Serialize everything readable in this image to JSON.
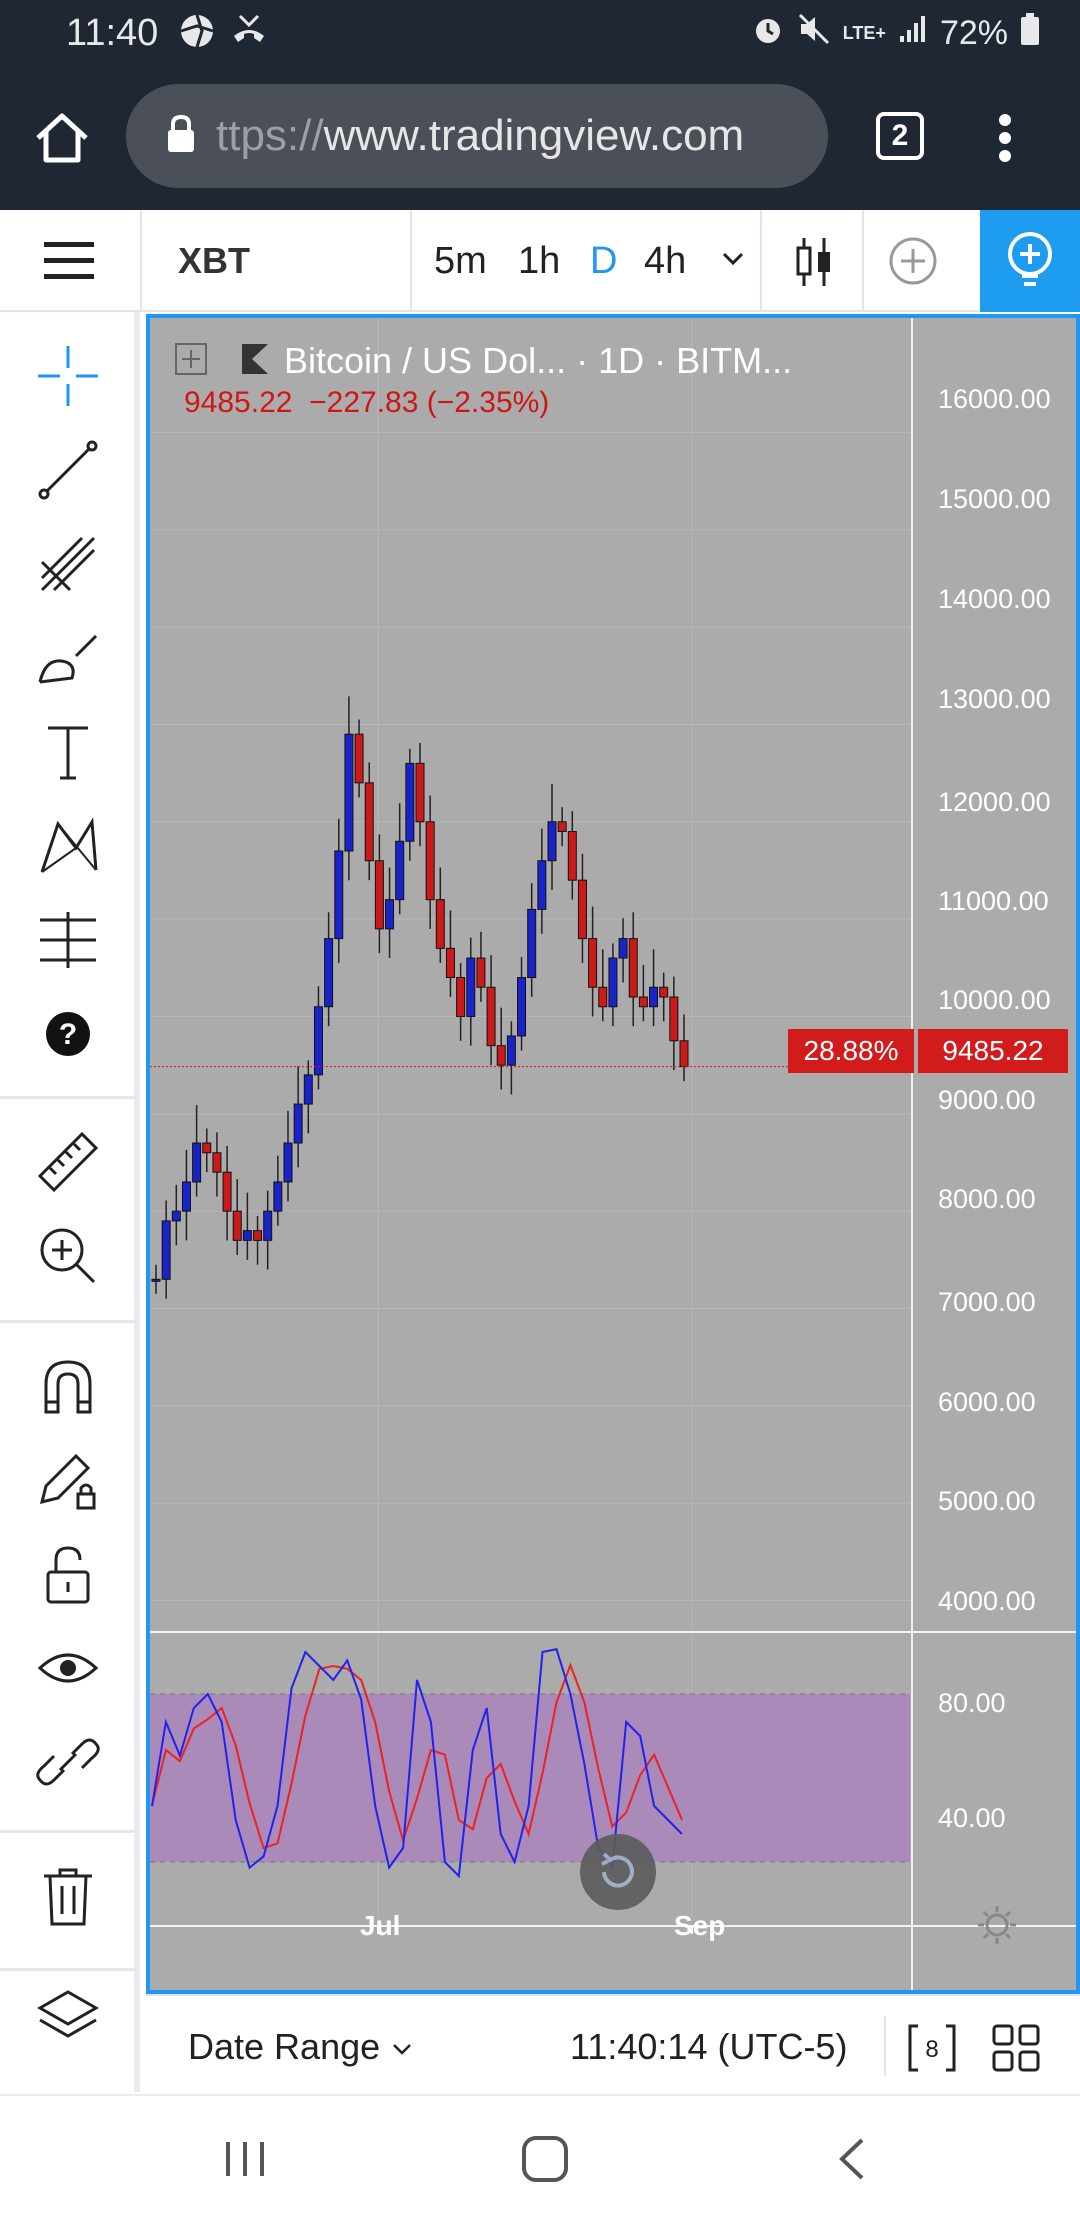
{
  "status_bar": {
    "time": "11:40",
    "network": "LTE+",
    "battery": "72%",
    "icons_left": [
      "aperture-icon",
      "missed-call-icon"
    ],
    "icons_right": [
      "alarm-icon",
      "mute-icon",
      "lte-icon",
      "signal-icon",
      "battery-icon"
    ]
  },
  "browser": {
    "url_prefix": "ttps://",
    "url_host": "www.tradingview.com",
    "tab_count": "2"
  },
  "tv_header": {
    "symbol": "XBT",
    "intervals": [
      "5m",
      "1h",
      "D",
      "4h"
    ],
    "active_interval": "D"
  },
  "chart": {
    "legend": {
      "title": "Bitcoin / US Dol...  · 1D · BITM...",
      "last": "9485.22",
      "change": "−227.83 (−2.35%)"
    },
    "price_tag": "9485.22",
    "percent_tag": "28.88%",
    "price_axis": [
      "16000.00",
      "15000.00",
      "14000.00",
      "13000.00",
      "12000.00",
      "11000.00",
      "10000.00",
      "9000.00",
      "8000.00",
      "7000.00",
      "6000.00",
      "5000.00",
      "4000.00"
    ],
    "osc_axis": [
      "80.00",
      "40.00"
    ],
    "time_axis": [
      "Jul",
      "Sep"
    ],
    "colors": {
      "background": "#ababab",
      "up_candle": "#1a23c8",
      "down_candle": "#cc1a1a",
      "osc_band": "#a98ab9",
      "k_line": "#2222ee",
      "d_line": "#ee2222",
      "accent": "#2196f3"
    }
  },
  "bottom_bar": {
    "date_range": "Date Range",
    "clock": "11:40:14 (UTC-5)",
    "badge": "8"
  },
  "chart_data": {
    "type": "candlestick",
    "ylim": [
      3800,
      16600
    ],
    "yticks": [
      16000,
      15000,
      14000,
      13000,
      12000,
      11000,
      10000,
      9000,
      8000,
      7000,
      6000,
      5000,
      4000
    ],
    "last_price": 9485.22,
    "change": -227.83,
    "change_pct": -2.35,
    "oscillator": {
      "ylim": [
        0,
        100
      ],
      "bands": [
        80,
        20
      ],
      "ticks": [
        80,
        40
      ]
    },
    "xticks": [
      "Jul",
      "Sep"
    ]
  }
}
